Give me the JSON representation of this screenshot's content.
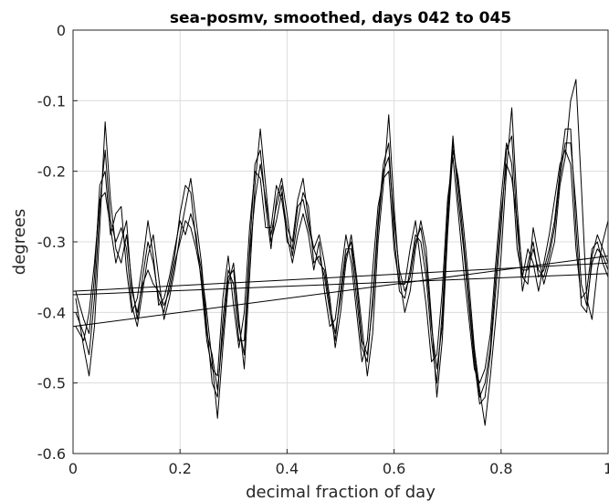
{
  "chart_data": {
    "type": "line",
    "title": "sea-posmv, smoothed, days 042 to 045",
    "xlabel": "decimal fraction of day",
    "ylabel": "degrees",
    "xlim": [
      0,
      1
    ],
    "ylim": [
      -0.6,
      0
    ],
    "xticks": [
      0,
      0.2,
      0.4,
      0.6,
      0.8,
      1
    ],
    "xtick_labels": [
      "0",
      "0.2",
      "0.4",
      "0.6",
      "0.8",
      "1"
    ],
    "yticks": [
      0,
      -0.1,
      -0.2,
      -0.3,
      -0.4,
      -0.5,
      -0.6
    ],
    "ytick_labels": [
      "0",
      "-0.1",
      "-0.2",
      "-0.3",
      "-0.4",
      "-0.5",
      "-0.6"
    ],
    "grid": true,
    "line_color": "#000000",
    "series": [
      {
        "x": [
          0.005,
          0.02,
          0.03,
          0.04,
          0.05,
          0.06,
          0.07,
          0.08,
          0.09,
          0.1,
          0.11,
          0.12,
          0.13,
          0.14,
          0.15,
          0.16,
          0.17,
          0.18,
          0.19,
          0.2,
          0.21,
          0.22,
          0.23,
          0.24,
          0.25,
          0.26,
          0.27,
          0.28,
          0.29,
          0.3,
          0.31,
          0.32,
          0.33,
          0.34,
          0.35,
          0.36,
          0.37,
          0.38,
          0.39,
          0.4,
          0.41,
          0.42,
          0.43,
          0.44,
          0.45,
          0.46,
          0.47,
          0.48,
          0.49,
          0.5,
          0.51,
          0.52,
          0.53,
          0.54,
          0.55,
          0.56,
          0.57,
          0.58,
          0.59,
          0.6,
          0.61,
          0.62,
          0.63,
          0.64,
          0.65,
          0.66,
          0.67,
          0.68,
          0.69,
          0.7,
          0.71,
          0.72,
          0.73,
          0.74,
          0.75,
          0.76,
          0.77,
          0.78,
          0.79,
          0.8,
          0.81,
          0.82,
          0.83,
          0.84,
          0.85,
          0.86,
          0.87,
          0.88,
          0.89,
          0.9,
          0.91,
          0.92,
          0.93,
          0.94,
          0.95,
          0.96,
          0.97,
          0.98,
          0.99,
          1.0
        ],
        "y": [
          -0.38,
          -0.45,
          -0.49,
          -0.42,
          -0.28,
          -0.13,
          -0.24,
          -0.31,
          -0.33,
          -0.29,
          -0.36,
          -0.41,
          -0.35,
          -0.3,
          -0.33,
          -0.38,
          -0.4,
          -0.36,
          -0.32,
          -0.26,
          -0.22,
          -0.23,
          -0.3,
          -0.34,
          -0.4,
          -0.47,
          -0.55,
          -0.45,
          -0.36,
          -0.33,
          -0.41,
          -0.48,
          -0.35,
          -0.22,
          -0.14,
          -0.22,
          -0.3,
          -0.27,
          -0.23,
          -0.28,
          -0.3,
          -0.24,
          -0.21,
          -0.27,
          -0.31,
          -0.29,
          -0.33,
          -0.38,
          -0.45,
          -0.4,
          -0.33,
          -0.29,
          -0.35,
          -0.42,
          -0.49,
          -0.43,
          -0.3,
          -0.22,
          -0.12,
          -0.25,
          -0.35,
          -0.4,
          -0.37,
          -0.31,
          -0.27,
          -0.31,
          -0.41,
          -0.52,
          -0.44,
          -0.29,
          -0.17,
          -0.21,
          -0.28,
          -0.36,
          -0.45,
          -0.51,
          -0.56,
          -0.49,
          -0.41,
          -0.32,
          -0.2,
          -0.11,
          -0.25,
          -0.35,
          -0.36,
          -0.28,
          -0.32,
          -0.36,
          -0.33,
          -0.3,
          -0.22,
          -0.18,
          -0.1,
          -0.07,
          -0.22,
          -0.38,
          -0.41,
          -0.34,
          -0.3,
          -0.27
        ]
      },
      {
        "x": [
          0.005,
          0.02,
          0.03,
          0.04,
          0.05,
          0.06,
          0.07,
          0.08,
          0.09,
          0.1,
          0.11,
          0.12,
          0.13,
          0.14,
          0.15,
          0.16,
          0.17,
          0.18,
          0.19,
          0.2,
          0.21,
          0.22,
          0.23,
          0.24,
          0.25,
          0.26,
          0.27,
          0.28,
          0.29,
          0.3,
          0.31,
          0.32,
          0.33,
          0.34,
          0.35,
          0.36,
          0.37,
          0.38,
          0.39,
          0.4,
          0.41,
          0.42,
          0.43,
          0.44,
          0.45,
          0.46,
          0.47,
          0.48,
          0.49,
          0.5,
          0.51,
          0.52,
          0.53,
          0.54,
          0.55,
          0.56,
          0.57,
          0.58,
          0.59,
          0.6,
          0.61,
          0.62,
          0.63,
          0.64,
          0.65,
          0.66,
          0.67,
          0.68,
          0.69,
          0.7,
          0.71,
          0.72,
          0.73,
          0.74,
          0.75,
          0.76,
          0.77,
          0.78,
          0.79,
          0.8,
          0.81,
          0.82,
          0.83,
          0.84,
          0.85,
          0.86,
          0.87,
          0.88,
          0.89,
          0.9,
          0.91,
          0.92,
          0.93,
          0.94,
          0.95,
          0.96,
          0.97,
          0.98,
          0.99,
          1.0
        ],
        "y": [
          -0.4,
          -0.43,
          -0.46,
          -0.38,
          -0.25,
          -0.17,
          -0.27,
          -0.3,
          -0.28,
          -0.31,
          -0.39,
          -0.42,
          -0.37,
          -0.32,
          -0.29,
          -0.35,
          -0.41,
          -0.38,
          -0.34,
          -0.29,
          -0.25,
          -0.21,
          -0.27,
          -0.33,
          -0.42,
          -0.5,
          -0.52,
          -0.41,
          -0.34,
          -0.36,
          -0.44,
          -0.44,
          -0.31,
          -0.19,
          -0.17,
          -0.25,
          -0.31,
          -0.24,
          -0.21,
          -0.26,
          -0.32,
          -0.27,
          -0.23,
          -0.25,
          -0.33,
          -0.32,
          -0.35,
          -0.4,
          -0.44,
          -0.37,
          -0.31,
          -0.31,
          -0.38,
          -0.45,
          -0.47,
          -0.38,
          -0.27,
          -0.19,
          -0.16,
          -0.29,
          -0.37,
          -0.38,
          -0.34,
          -0.29,
          -0.3,
          -0.35,
          -0.44,
          -0.5,
          -0.4,
          -0.26,
          -0.15,
          -0.24,
          -0.31,
          -0.39,
          -0.47,
          -0.53,
          -0.52,
          -0.46,
          -0.37,
          -0.28,
          -0.17,
          -0.15,
          -0.28,
          -0.37,
          -0.33,
          -0.3,
          -0.35,
          -0.34,
          -0.31,
          -0.27,
          -0.2,
          -0.14,
          -0.14,
          -0.28,
          -0.39,
          -0.4,
          -0.32,
          -0.29,
          -0.31,
          -0.33
        ]
      },
      {
        "x": [
          0.005,
          0.02,
          0.03,
          0.04,
          0.05,
          0.06,
          0.07,
          0.08,
          0.09,
          0.1,
          0.11,
          0.12,
          0.13,
          0.14,
          0.15,
          0.16,
          0.17,
          0.18,
          0.19,
          0.2,
          0.21,
          0.22,
          0.23,
          0.24,
          0.25,
          0.26,
          0.27,
          0.28,
          0.29,
          0.3,
          0.31,
          0.32,
          0.33,
          0.34,
          0.35,
          0.36,
          0.37,
          0.38,
          0.39,
          0.4,
          0.41,
          0.42,
          0.43,
          0.44,
          0.45,
          0.46,
          0.47,
          0.48,
          0.49,
          0.5,
          0.51,
          0.52,
          0.53,
          0.54,
          0.55,
          0.56,
          0.57,
          0.58,
          0.59,
          0.6,
          0.61,
          0.62,
          0.63,
          0.64,
          0.65,
          0.66,
          0.67,
          0.68,
          0.69,
          0.7,
          0.71,
          0.72,
          0.73,
          0.74,
          0.75,
          0.76,
          0.77,
          0.78,
          0.79,
          0.8,
          0.81,
          0.82,
          0.83,
          0.84,
          0.85,
          0.86,
          0.87,
          0.88,
          0.89,
          0.9,
          0.91,
          0.92,
          0.93,
          0.94,
          0.95,
          0.96,
          0.97,
          0.98,
          0.99,
          1.0
        ],
        "y": [
          -0.37,
          -0.41,
          -0.43,
          -0.35,
          -0.22,
          -0.2,
          -0.29,
          -0.26,
          -0.25,
          -0.34,
          -0.4,
          -0.38,
          -0.33,
          -0.27,
          -0.32,
          -0.39,
          -0.38,
          -0.35,
          -0.31,
          -0.27,
          -0.29,
          -0.26,
          -0.29,
          -0.36,
          -0.44,
          -0.48,
          -0.49,
          -0.38,
          -0.32,
          -0.39,
          -0.45,
          -0.4,
          -0.28,
          -0.2,
          -0.21,
          -0.28,
          -0.28,
          -0.22,
          -0.24,
          -0.29,
          -0.33,
          -0.29,
          -0.26,
          -0.29,
          -0.34,
          -0.3,
          -0.37,
          -0.42,
          -0.41,
          -0.35,
          -0.29,
          -0.33,
          -0.4,
          -0.47,
          -0.44,
          -0.34,
          -0.25,
          -0.21,
          -0.2,
          -0.31,
          -0.36,
          -0.36,
          -0.31,
          -0.27,
          -0.33,
          -0.39,
          -0.47,
          -0.46,
          -0.37,
          -0.24,
          -0.18,
          -0.26,
          -0.34,
          -0.41,
          -0.48,
          -0.5,
          -0.48,
          -0.43,
          -0.33,
          -0.24,
          -0.16,
          -0.19,
          -0.31,
          -0.35,
          -0.31,
          -0.33,
          -0.37,
          -0.33,
          -0.29,
          -0.24,
          -0.19,
          -0.17,
          -0.19,
          -0.31,
          -0.38,
          -0.37,
          -0.31,
          -0.3,
          -0.33,
          -0.35
        ]
      },
      {
        "x": [
          0.005,
          0.02,
          0.03,
          0.04,
          0.05,
          0.06,
          0.07,
          0.08,
          0.09,
          0.1,
          0.11,
          0.12,
          0.13,
          0.14,
          0.15,
          0.16,
          0.17,
          0.18,
          0.19,
          0.2,
          0.21,
          0.22,
          0.23,
          0.24,
          0.25,
          0.26,
          0.27,
          0.28,
          0.29,
          0.3,
          0.31,
          0.32,
          0.33,
          0.34,
          0.35,
          0.36,
          0.37,
          0.38,
          0.39,
          0.4,
          0.41,
          0.42,
          0.43,
          0.44,
          0.45,
          0.46,
          0.47,
          0.48,
          0.49,
          0.5,
          0.51,
          0.52,
          0.53,
          0.54,
          0.55,
          0.56,
          0.57,
          0.58,
          0.59,
          0.6,
          0.61,
          0.62,
          0.63,
          0.64,
          0.65,
          0.66,
          0.67,
          0.68,
          0.69,
          0.7,
          0.71,
          0.72,
          0.73,
          0.74,
          0.75,
          0.76,
          0.77,
          0.78,
          0.79,
          0.8,
          0.81,
          0.82,
          0.83,
          0.84,
          0.85,
          0.86,
          0.87,
          0.88,
          0.89,
          0.9,
          0.91,
          0.92,
          0.93,
          0.94,
          0.95,
          0.96,
          0.97,
          0.98,
          0.99,
          1.0
        ],
        "y": [
          -0.42,
          -0.44,
          -0.4,
          -0.33,
          -0.24,
          -0.23,
          -0.28,
          -0.33,
          -0.3,
          -0.27,
          -0.37,
          -0.4,
          -0.36,
          -0.34,
          -0.36,
          -0.37,
          -0.39,
          -0.37,
          -0.33,
          -0.3,
          -0.27,
          -0.28,
          -0.31,
          -0.35,
          -0.43,
          -0.46,
          -0.51,
          -0.43,
          -0.35,
          -0.34,
          -0.42,
          -0.46,
          -0.32,
          -0.24,
          -0.19,
          -0.24,
          -0.29,
          -0.25,
          -0.22,
          -0.3,
          -0.31,
          -0.25,
          -0.24,
          -0.28,
          -0.31,
          -0.33,
          -0.34,
          -0.39,
          -0.43,
          -0.38,
          -0.32,
          -0.3,
          -0.36,
          -0.44,
          -0.46,
          -0.39,
          -0.28,
          -0.2,
          -0.18,
          -0.27,
          -0.34,
          -0.37,
          -0.35,
          -0.3,
          -0.28,
          -0.33,
          -0.42,
          -0.48,
          -0.42,
          -0.27,
          -0.16,
          -0.22,
          -0.3,
          -0.38,
          -0.46,
          -0.52,
          -0.5,
          -0.45,
          -0.35,
          -0.26,
          -0.19,
          -0.21,
          -0.27,
          -0.34,
          -0.34,
          -0.31,
          -0.34,
          -0.35,
          -0.32,
          -0.28,
          -0.21,
          -0.16,
          -0.16,
          -0.25,
          -0.36,
          -0.39,
          -0.33,
          -0.31,
          -0.32,
          -0.34
        ]
      },
      {
        "x": [
          0.0,
          1.0
        ],
        "y": [
          -0.42,
          -0.32
        ]
      },
      {
        "x": [
          0.0,
          1.0
        ],
        "y": [
          -0.37,
          -0.33
        ]
      },
      {
        "x": [
          0.0,
          1.0
        ],
        "y": [
          -0.375,
          -0.345
        ]
      }
    ]
  }
}
